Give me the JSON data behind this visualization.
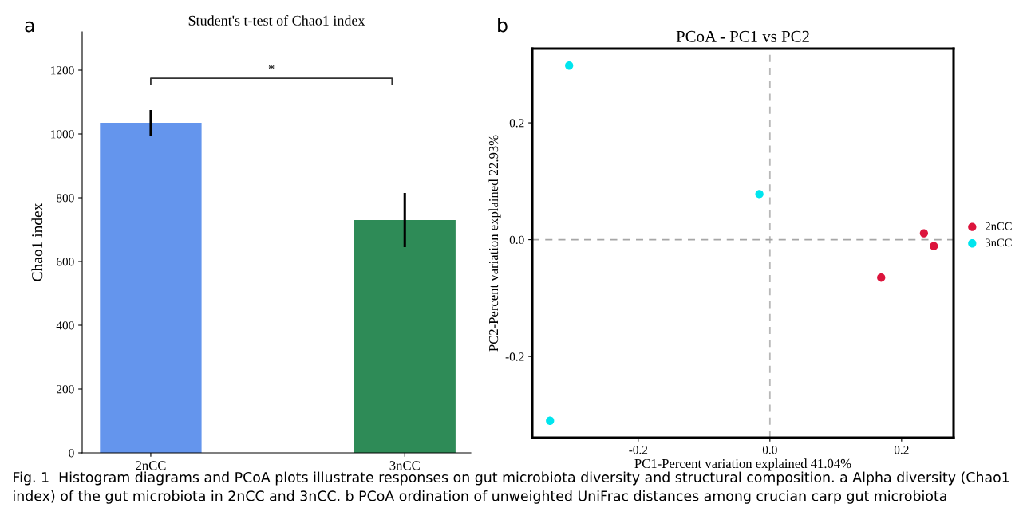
{
  "chart_data": [
    {
      "type": "bar",
      "title": "Student's t-test of Chao1 index",
      "ylabel": "Chao1 index",
      "categories": [
        "2nCC",
        "3nCC"
      ],
      "values": [
        1035,
        730
      ],
      "colors": [
        "#6495ed",
        "#2e8b57"
      ],
      "errors": [
        40,
        85
      ],
      "ylim": [
        0,
        1320
      ],
      "yticks": [
        0,
        200,
        400,
        600,
        800,
        1000,
        1200
      ],
      "grid": false,
      "legend": false,
      "annotations": [
        "a",
        "*"
      ]
    },
    {
      "type": "scatter",
      "title": "PCoA - PC1 vs PC2",
      "xlabel": "PC1-Percent variation explained 41.04%",
      "ylabel": "PC2-Percent variation explained 22.93%",
      "xlim": [
        -0.361,
        0.279
      ],
      "ylim": [
        -0.339,
        0.327
      ],
      "xticks": [
        -0.2,
        {
          "value": 0,
          "label": "0.0"
        },
        0.2
      ],
      "yticks": [
        -0.2,
        {
          "value": 0,
          "label": "0.0"
        },
        0.2
      ],
      "grid": false,
      "legend": "right",
      "marker": "circle",
      "series": [
        {
          "name": "2nCC",
          "color": "#dc143c",
          "x": [
            0.234,
            0.249,
            0.169
          ],
          "values": [
            0.011,
            -0.011,
            -0.065
          ]
        },
        {
          "name": "3nCC",
          "color": "#00e5ee",
          "x": [
            -0.305,
            -0.016,
            -0.334
          ],
          "values": [
            0.298,
            0.078,
            -0.31
          ]
        }
      ],
      "ref_lines": [
        {
          "axis": "x",
          "value": 0,
          "color": "#b8b8b8",
          "line_style": "dashed"
        },
        {
          "axis": "y",
          "value": 0,
          "color": "#a6a6a6",
          "line_style": "dashed"
        }
      ],
      "annotations": [
        "b",
        "Fig. 1  Histogram diagrams and PCoA plots illustrate responses on gut microbiota diversity and structural composition. a Alpha diversity (Chao1 index) of the gut microbiota in 2nCC and 3nCC. b PCoA ordination of unweighted UniFrac distances among crucian carp gut microbiota"
      ]
    }
  ]
}
